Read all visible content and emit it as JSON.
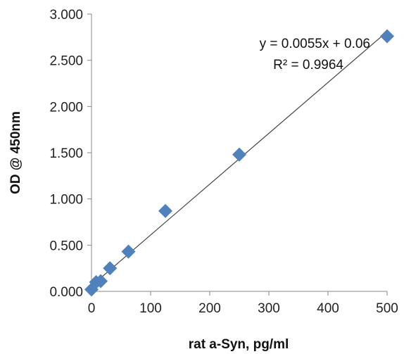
{
  "chart_data": {
    "type": "scatter",
    "xlabel": "rat a-Syn, pg/ml",
    "ylabel": "OD @ 450nm",
    "xlim": [
      0,
      500
    ],
    "ylim": [
      0,
      3
    ],
    "x_ticks": [
      "0",
      "100",
      "200",
      "300",
      "400",
      "500"
    ],
    "y_ticks": [
      "0.000",
      "0.500",
      "1.000",
      "1.500",
      "2.000",
      "2.500",
      "3.000"
    ],
    "grid": false,
    "marker": "diamond",
    "marker_color": "#4F81BD",
    "series": [
      {
        "x": [
          0,
          7.8,
          15.6,
          31.25,
          62.5,
          125,
          250,
          500
        ],
        "y": [
          0.02,
          0.1,
          0.11,
          0.25,
          0.43,
          0.87,
          1.48,
          2.76
        ]
      }
    ],
    "trendline": {
      "slope": 0.0055,
      "intercept": 0.06,
      "equation": "y = 0.0055x + 0.06",
      "r_squared": "R² = 0.9964"
    }
  }
}
